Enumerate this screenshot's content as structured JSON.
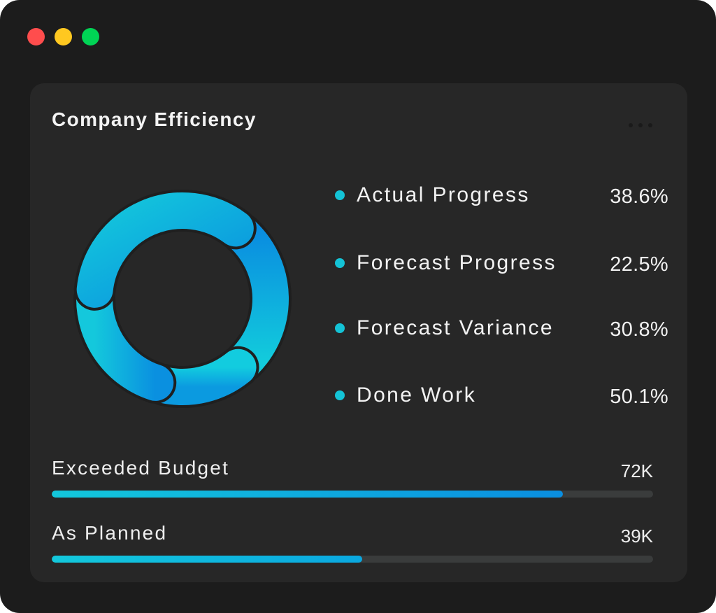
{
  "window": {
    "controls": [
      {
        "name": "close",
        "color": "#ff4d4d"
      },
      {
        "name": "minimize",
        "color": "#ffc820"
      },
      {
        "name": "maximize",
        "color": "#00d455"
      }
    ]
  },
  "card": {
    "title": "Company Efficiency",
    "more_icon": "more-horizontal-icon"
  },
  "chart_data": {
    "type": "pie",
    "variant": "donut",
    "title": "Company Efficiency",
    "categories": [
      "Actual Progress",
      "Forecast Progress",
      "Forecast Variance",
      "Done Work"
    ],
    "values": [
      38.6,
      22.5,
      30.8,
      50.1
    ],
    "value_labels": [
      "38.6%",
      "22.5%",
      "30.8%",
      "50.1%"
    ],
    "legend": "right",
    "colors": {
      "gradient_start": "#12cde0",
      "gradient_end": "#0a8fe0",
      "legend_dot": "#14c3d6"
    }
  },
  "legend": {
    "items": [
      {
        "label": "Actual Progress",
        "value": "38.6%"
      },
      {
        "label": "Forecast Progress",
        "value": "22.5%"
      },
      {
        "label": "Forecast Variance",
        "value": "30.8%"
      },
      {
        "label": "Done Work",
        "value": "50.1%"
      }
    ]
  },
  "bars": [
    {
      "label": "Exceeded Budget",
      "value": "72K",
      "progress": 0.85,
      "color_start": "#13c8dc",
      "color_end": "#0a8ee0"
    },
    {
      "label": "As Planned",
      "value": "39K",
      "progress": 0.516,
      "color_start": "#13c8dc",
      "color_end": "#0aa8e0"
    }
  ],
  "colors": {
    "window_bg": "#1c1c1c",
    "card_bg": "#272727",
    "track": "#3a3c3c",
    "text": "#f2f2f2"
  }
}
